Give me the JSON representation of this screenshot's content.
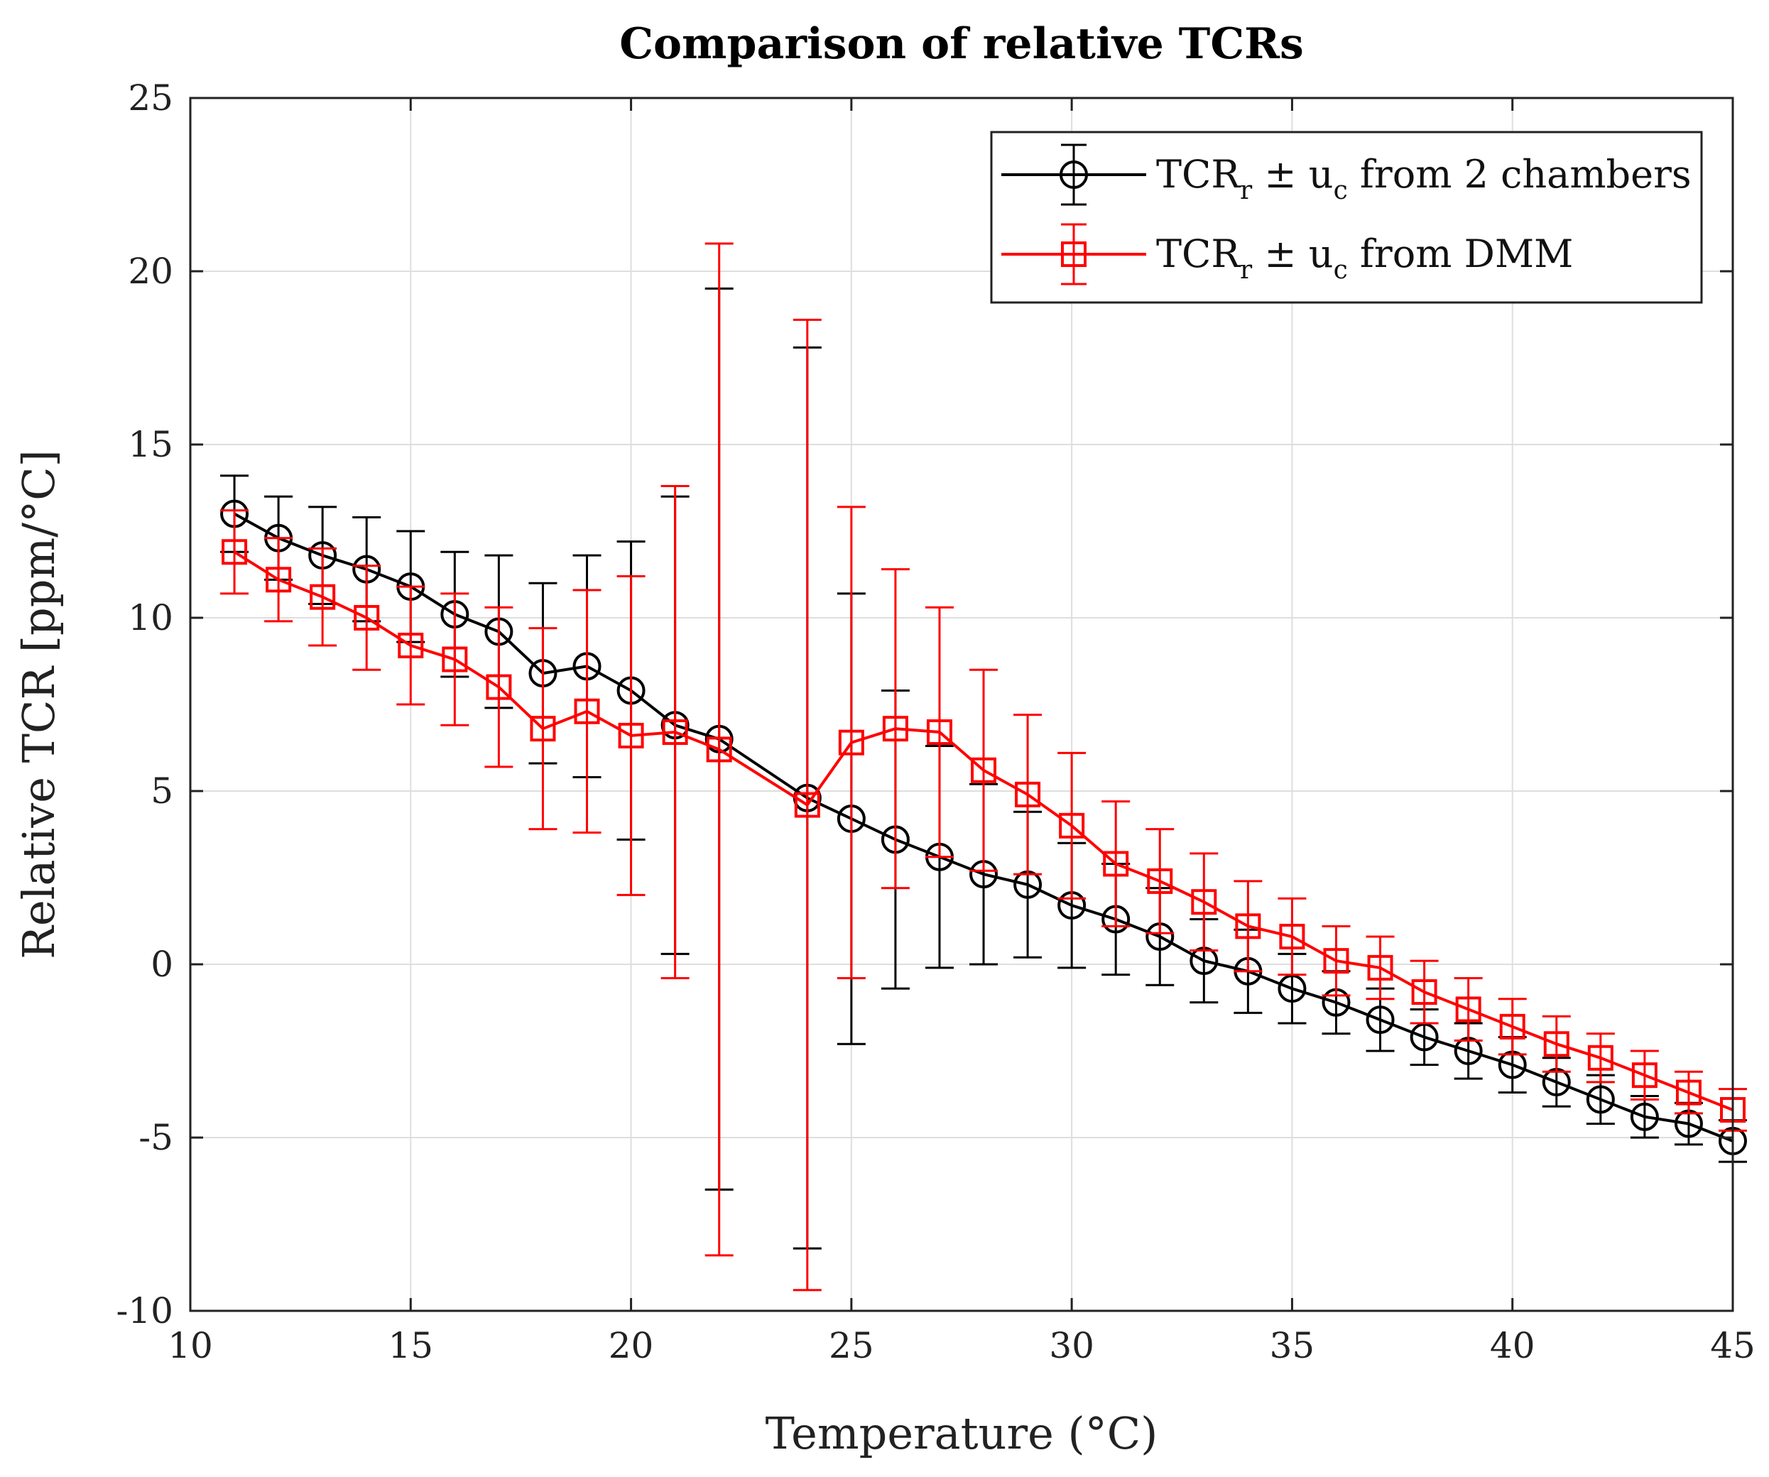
{
  "chart_data": {
    "type": "line",
    "title": "Comparison of relative TCRs",
    "xlabel": "Temperature (°C)",
    "ylabel": "Relative TCR [ppm/°C]",
    "xlim": [
      10,
      45
    ],
    "ylim": [
      -10,
      25
    ],
    "xticks": [
      10,
      15,
      20,
      25,
      30,
      35,
      40,
      45
    ],
    "yticks": [
      -10,
      -5,
      0,
      5,
      10,
      15,
      20,
      25
    ],
    "grid": true,
    "legend_position": "top-right",
    "series": [
      {
        "name": "TCRr ± uc from 2 chambers",
        "legend_parts": [
          "TCR",
          "r",
          " ± u",
          "c",
          " from 2 chambers"
        ],
        "color": "#000000",
        "marker": "circle",
        "x": [
          11,
          12,
          13,
          14,
          15,
          16,
          17,
          18,
          19,
          20,
          21,
          22,
          24,
          25,
          26,
          27,
          28,
          29,
          30,
          31,
          32,
          33,
          34,
          35,
          36,
          37,
          38,
          39,
          40,
          41,
          42,
          43,
          44,
          45
        ],
        "y": [
          13.0,
          12.3,
          11.8,
          11.4,
          10.9,
          10.1,
          9.6,
          8.4,
          8.6,
          7.9,
          6.9,
          6.5,
          4.8,
          4.2,
          3.6,
          3.1,
          2.6,
          2.3,
          1.7,
          1.3,
          0.8,
          0.1,
          -0.2,
          -0.7,
          -1.1,
          -1.6,
          -2.1,
          -2.5,
          -2.9,
          -3.4,
          -3.9,
          -4.4,
          -4.6,
          -5.1
        ],
        "err": [
          1.1,
          1.2,
          1.4,
          1.5,
          1.6,
          1.8,
          2.2,
          2.6,
          3.2,
          4.3,
          6.6,
          13.0,
          13.0,
          6.5,
          4.3,
          3.2,
          2.6,
          2.1,
          1.8,
          1.6,
          1.4,
          1.2,
          1.2,
          1.0,
          0.9,
          0.9,
          0.8,
          0.8,
          0.8,
          0.7,
          0.7,
          0.6,
          0.6,
          0.6
        ]
      },
      {
        "name": "TCRr ± uc from DMM",
        "legend_parts": [
          "TCR",
          "r",
          " ± u",
          "c",
          " from DMM"
        ],
        "color": "#ff0000",
        "marker": "square",
        "x": [
          11,
          12,
          13,
          14,
          15,
          16,
          17,
          18,
          19,
          20,
          21,
          22,
          24,
          25,
          26,
          27,
          28,
          29,
          30,
          31,
          32,
          33,
          34,
          35,
          36,
          37,
          38,
          39,
          40,
          41,
          42,
          43,
          44,
          45
        ],
        "y": [
          11.9,
          11.1,
          10.6,
          10.0,
          9.2,
          8.8,
          8.0,
          6.8,
          7.3,
          6.6,
          6.7,
          6.2,
          4.6,
          6.4,
          6.8,
          6.7,
          5.6,
          4.9,
          4.0,
          2.9,
          2.4,
          1.8,
          1.1,
          0.8,
          0.1,
          -0.1,
          -0.8,
          -1.3,
          -1.8,
          -2.3,
          -2.7,
          -3.2,
          -3.7,
          -4.2
        ],
        "err": [
          1.2,
          1.2,
          1.4,
          1.5,
          1.7,
          1.9,
          2.3,
          2.9,
          3.5,
          4.6,
          7.1,
          14.6,
          14.0,
          6.8,
          4.6,
          3.6,
          2.9,
          2.3,
          2.1,
          1.8,
          1.5,
          1.4,
          1.3,
          1.1,
          1.0,
          0.9,
          0.9,
          0.9,
          0.8,
          0.8,
          0.7,
          0.7,
          0.6,
          0.6
        ]
      }
    ]
  }
}
